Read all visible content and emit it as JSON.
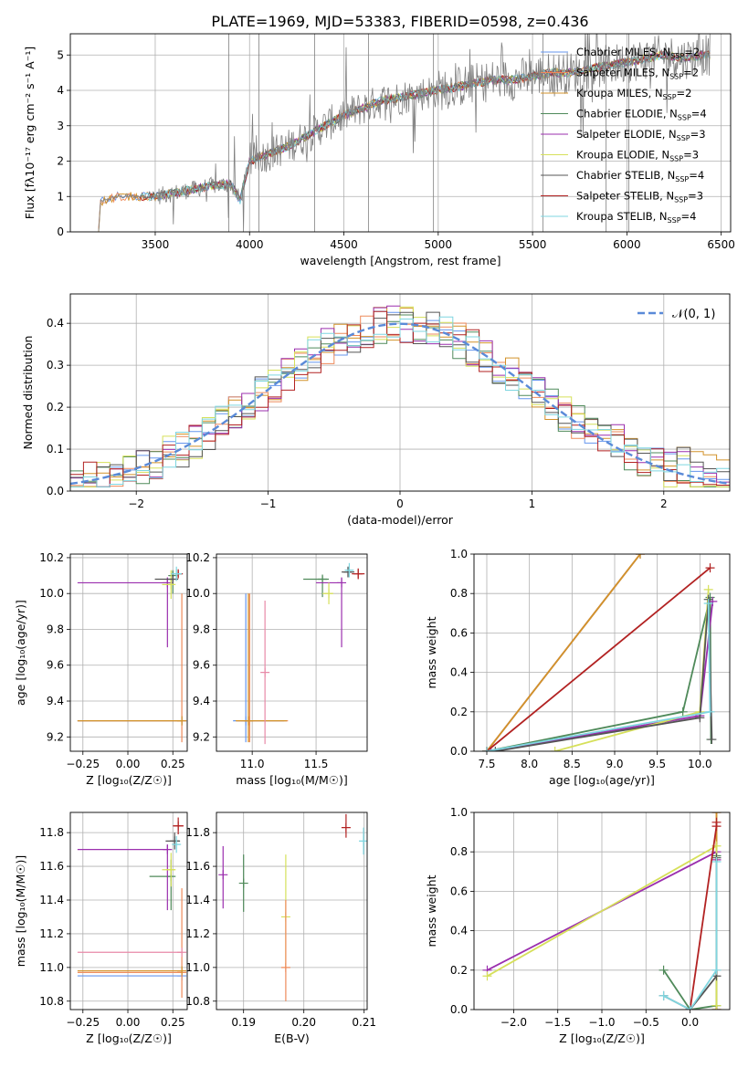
{
  "figure_title": "PLATE=1969, MJD=53383, FIBERID=0598, z=0.436",
  "colors": {
    "grid": "#b0b0b0",
    "spectrum": "#808080",
    "normal_curve": "#5a8ad8",
    "models": {
      "chabrier_miles": "#6495ed",
      "salpeter_miles": "#ee8a5a",
      "kroupa_miles": "#d2922a",
      "chabrier_elodie": "#4f8a5a",
      "salpeter_elodie": "#9b2fae",
      "kroupa_elodie": "#d6e05a",
      "chabrier_stelib": "#555555",
      "salpeter_stelib": "#b22222",
      "kroupa_stelib": "#7fd6e0",
      "extra_pink": "#e88aa8"
    }
  },
  "panels": {
    "spectrum": {
      "xlabel": "wavelength [Angstrom, rest frame]",
      "ylabel": "Flux [f_λ10^-17 erg cm^-2 s^-1 A^-1]",
      "xticks": [
        "3500",
        "4000",
        "4500",
        "5000",
        "5500",
        "6000",
        "6500"
      ],
      "yticks": [
        "0",
        "1",
        "2",
        "3",
        "4",
        "5"
      ],
      "legend": [
        {
          "label": "Chabrier MILES, N_SSP=2",
          "color": "#6495ed"
        },
        {
          "label": "Salpeter MILES, N_SSP=2",
          "color": "#ee8a5a"
        },
        {
          "label": "Kroupa MILES, N_SSP=2",
          "color": "#d2922a"
        },
        {
          "label": "Chabrier ELODIE, N_SSP=4",
          "color": "#4f8a5a"
        },
        {
          "label": "Salpeter ELODIE, N_SSP=3",
          "color": "#9b2fae"
        },
        {
          "label": "Kroupa ELODIE, N_SSP=3",
          "color": "#d6e05a"
        },
        {
          "label": "Chabrier STELIB, N_SSP=4",
          "color": "#555555"
        },
        {
          "label": "Salpeter STELIB, N_SSP=3",
          "color": "#b22222"
        },
        {
          "label": "Kroupa STELIB, N_SSP=4",
          "color": "#7fd6e0"
        }
      ]
    },
    "residuals": {
      "xlabel": "(data-model)/error",
      "ylabel": "Normed distribution",
      "xticks": [
        "−2",
        "−1",
        "0",
        "1",
        "2"
      ],
      "yticks": [
        "0.0",
        "0.1",
        "0.2",
        "0.3",
        "0.4"
      ],
      "legend_label": "𝒩(0, 1)"
    },
    "age_z": {
      "xlabel": "Z [log₁₀(Z/Z☉)]",
      "ylabel": "age  [log₁₀(age/yr)]",
      "xticks": [
        "−0.25",
        "0.00",
        "0.25"
      ],
      "yticks": [
        "9.2",
        "9.4",
        "9.6",
        "9.8",
        "10.0",
        "10.2"
      ]
    },
    "age_mass": {
      "xlabel": "mass [log₁₀(M/M☉)]",
      "xticks": [
        "11.0",
        "11.5"
      ],
      "yticks": [
        "9.2",
        "9.4",
        "9.6",
        "9.8",
        "10.0",
        "10.2"
      ]
    },
    "weight_age": {
      "xlabel": "age  [log₁₀(age/yr)]",
      "ylabel": "mass weight",
      "xticks": [
        "7.5",
        "8.0",
        "8.5",
        "9.0",
        "9.5",
        "10.0"
      ],
      "yticks": [
        "0.0",
        "0.2",
        "0.4",
        "0.6",
        "0.8",
        "1.0"
      ]
    },
    "mass_z": {
      "xlabel": "Z [log₁₀(Z/Z☉)]",
      "ylabel": "mass [log₁₀(M/M☉)]",
      "xticks": [
        "−0.25",
        "0.00",
        "0.25"
      ],
      "yticks": [
        "10.8",
        "11.0",
        "11.2",
        "11.4",
        "11.6",
        "11.8"
      ]
    },
    "mass_ebv": {
      "xlabel": "E(B-V)",
      "xticks": [
        "0.19",
        "0.20",
        "0.21"
      ],
      "yticks": [
        "10.8",
        "11.0",
        "11.2",
        "11.4",
        "11.6",
        "11.8"
      ]
    },
    "weight_z": {
      "xlabel": "Z [log₁₀(Z/Z☉)]",
      "ylabel": "mass weight",
      "xticks": [
        "−2.0",
        "−1.5",
        "−1.0",
        "−0.5",
        "0.0"
      ],
      "yticks": [
        "0.0",
        "0.2",
        "0.4",
        "0.6",
        "0.8",
        "1.0"
      ]
    }
  },
  "chart_data": [
    {
      "type": "line",
      "title": "PLATE=1969, MJD=53383, FIBERID=0598, z=0.436",
      "xlabel": "wavelength [Angstrom, rest frame]",
      "ylabel": "Flux [f_λ10^-17 erg cm^-2 s^-1 A^-1]",
      "xlim": [
        3050,
        6550
      ],
      "ylim": [
        0,
        5.6
      ],
      "grid": true,
      "legend_position": "top-right",
      "observed_trend": {
        "x": [
          3200,
          3210,
          3300,
          3400,
          3500,
          3600,
          3700,
          3800,
          3900,
          3950,
          4000,
          4100,
          4200,
          4300,
          4400,
          4500,
          4600,
          4700,
          4800,
          4900,
          5000,
          5100,
          5200,
          5300,
          5400,
          5500,
          5600,
          5700,
          5800,
          5900,
          6000,
          6100,
          6200,
          6300,
          6400
        ],
        "y": [
          0,
          0.85,
          1.0,
          1.0,
          1.0,
          1.1,
          1.2,
          1.3,
          1.35,
          0.9,
          2.0,
          2.2,
          2.4,
          2.7,
          3.0,
          3.3,
          3.5,
          3.7,
          3.8,
          3.9,
          4.0,
          4.1,
          4.2,
          4.3,
          4.3,
          4.4,
          4.5,
          4.5,
          4.6,
          4.7,
          4.8,
          4.9,
          5.0,
          4.9,
          5.0
        ]
      },
      "series": [
        {
          "name": "Chabrier MILES, N_SSP=2"
        },
        {
          "name": "Salpeter MILES, N_SSP=2"
        },
        {
          "name": "Kroupa MILES, N_SSP=2"
        },
        {
          "name": "Chabrier ELODIE, N_SSP=4"
        },
        {
          "name": "Salpeter ELODIE, N_SSP=3"
        },
        {
          "name": "Kroupa ELODIE, N_SSP=3"
        },
        {
          "name": "Chabrier STELIB, N_SSP=4"
        },
        {
          "name": "Salpeter STELIB, N_SSP=3"
        },
        {
          "name": "Kroupa STELIB, N_SSP=4"
        }
      ]
    },
    {
      "type": "line",
      "xlabel": "(data-model)/error",
      "ylabel": "Normed distribution",
      "xlim": [
        -2.5,
        2.5
      ],
      "ylim": [
        0,
        0.47
      ],
      "grid": true,
      "legend_position": "top-right",
      "bin_width": 0.1,
      "normal_curve": {
        "name": "𝒩(0, 1)",
        "mean": 0,
        "sigma": 1
      },
      "histogram_mean": [
        0.02,
        0.025,
        0.035,
        0.04,
        0.05,
        0.055,
        0.06,
        0.07,
        0.075,
        0.08,
        0.09,
        0.1,
        0.11,
        0.12,
        0.13,
        0.14,
        0.15,
        0.16,
        0.18,
        0.2,
        0.22,
        0.24,
        0.26,
        0.28,
        0.3,
        0.32,
        0.34,
        0.35,
        0.36,
        0.37,
        0.38,
        0.39,
        0.39,
        0.4,
        0.4,
        0.41,
        0.4,
        0.39,
        0.38,
        0.37,
        0.36,
        0.35,
        0.33,
        0.31,
        0.29,
        0.27,
        0.25,
        0.23,
        0.21,
        0.19,
        0.17,
        0.15,
        0.13,
        0.12,
        0.1,
        0.09,
        0.08,
        0.07,
        0.06,
        0.05,
        0.045,
        0.04,
        0.035,
        0.03,
        0.04,
        0.05,
        0.04,
        0.035,
        0.03,
        0.04
      ]
    },
    {
      "type": "scatter",
      "xlabel": "Z [log₁₀(Z/Z☉)]",
      "ylabel": "age  [log₁₀(age/yr)]",
      "xlim": [
        -0.32,
        0.33
      ],
      "ylim": [
        9.12,
        10.22
      ],
      "grid": true,
      "points": [
        {
          "series": "Chabrier MILES",
          "x": 0.3,
          "y": 9.29,
          "xerr": [
            0.58,
            0
          ],
          "yerr": [
            0,
            0
          ]
        },
        {
          "series": "Salpeter MILES",
          "x": 0.3,
          "y": 9.29,
          "xerr": [
            0.58,
            0
          ],
          "yerr": [
            0.12,
            0.71
          ]
        },
        {
          "series": "Kroupa MILES",
          "x": 0.3,
          "y": 9.29,
          "xerr": [
            0.58,
            0
          ],
          "yerr": [
            0,
            0
          ]
        },
        {
          "series": "Chabrier ELODIE",
          "x": 0.25,
          "y": 10.1,
          "xerr": [
            0.02,
            0.01
          ],
          "yerr": [
            0.1,
            0.03
          ]
        },
        {
          "series": "Salpeter ELODIE",
          "x": 0.22,
          "y": 10.06,
          "xerr": [
            0.5,
            0
          ],
          "yerr": [
            0.36,
            0.03
          ]
        },
        {
          "series": "Kroupa ELODIE",
          "x": 0.24,
          "y": 10.05,
          "xerr": [
            0.05,
            0.02
          ],
          "yerr": [
            0.08,
            0.08
          ]
        },
        {
          "series": "Chabrier STELIB",
          "x": 0.25,
          "y": 10.08,
          "xerr": [
            0.1,
            0.03
          ],
          "yerr": [
            0.02,
            0.02
          ]
        },
        {
          "series": "Salpeter STELIB",
          "x": 0.28,
          "y": 10.11,
          "xerr": [
            0.02,
            0.02
          ],
          "yerr": [
            0.02,
            0.02
          ]
        },
        {
          "series": "Kroupa STELIB",
          "x": 0.27,
          "y": 10.11,
          "xerr": [
            0.03,
            0.03
          ],
          "yerr": [
            0.04,
            0.04
          ]
        }
      ]
    },
    {
      "type": "scatter",
      "xlabel": "mass [log₁₀(M/M☉)]",
      "xlim": [
        10.72,
        11.9
      ],
      "ylim": [
        9.12,
        10.22
      ],
      "grid": true,
      "points": [
        {
          "series": "Chabrier MILES",
          "x": 10.95,
          "y": 9.29,
          "xerr": [
            0.1,
            0.3
          ],
          "yerr": [
            0.12,
            0.71
          ]
        },
        {
          "series": "Salpeter MILES",
          "x": 10.98,
          "y": 9.29,
          "xerr": [
            0.1,
            0.3
          ],
          "yerr": [
            0.12,
            0.71
          ]
        },
        {
          "series": "Kroupa MILES",
          "x": 10.97,
          "y": 9.29,
          "xerr": [
            0.1,
            0.3
          ],
          "yerr": [
            0.12,
            0.71
          ]
        },
        {
          "series": "Chabrier ELODIE",
          "x": 11.55,
          "y": 10.08,
          "xerr": [
            0.15,
            0.05
          ],
          "yerr": [
            0.1,
            0.02
          ]
        },
        {
          "series": "Salpeter ELODIE",
          "x": 11.7,
          "y": 10.06,
          "xerr": [
            0.2,
            0.0
          ],
          "yerr": [
            0.36,
            0.03
          ]
        },
        {
          "series": "Kroupa ELODIE",
          "x": 11.6,
          "y": 10.0,
          "xerr": [
            0.05,
            0.03
          ],
          "yerr": [
            0.06,
            0.06
          ]
        },
        {
          "series": "Chabrier STELIB",
          "x": 11.75,
          "y": 10.12,
          "xerr": [
            0.05,
            0.05
          ],
          "yerr": [
            0.03,
            0.03
          ]
        },
        {
          "series": "Salpeter STELIB",
          "x": 11.83,
          "y": 10.11,
          "xerr": [
            0.05,
            0.05
          ],
          "yerr": [
            0.03,
            0.03
          ]
        },
        {
          "series": "Kroupa STELIB",
          "x": 11.76,
          "y": 10.13,
          "xerr": [
            0.03,
            0.03
          ],
          "yerr": [
            0.04,
            0.04
          ]
        },
        {
          "series": "extra",
          "x": 11.1,
          "y": 9.56,
          "xerr": [
            0,
            0
          ],
          "yerr": [
            0.4,
            0.4
          ]
        }
      ]
    },
    {
      "type": "line",
      "xlabel": "age  [log₁₀(age/yr)]",
      "ylabel": "mass weight",
      "xlim": [
        7.35,
        10.35
      ],
      "ylim": [
        0,
        1
      ],
      "grid": true,
      "series": [
        {
          "x": [
            7.5,
            9.3
          ],
          "y": [
            0,
            1.0
          ]
        },
        {
          "x": [
            7.5,
            9.3
          ],
          "y": [
            0,
            1.0
          ]
        },
        {
          "x": [
            7.5,
            9.3
          ],
          "y": [
            0,
            1.0
          ]
        },
        {
          "x": [
            7.5,
            9.8,
            10.12,
            10.13
          ],
          "y": [
            0,
            0.2,
            0.78,
            0.06
          ]
        },
        {
          "x": [
            7.55,
            10.0,
            10.15
          ],
          "y": [
            0,
            0.18,
            0.76
          ]
        },
        {
          "x": [
            8.3,
            10.0,
            10.1
          ],
          "y": [
            0,
            0.2,
            0.82
          ]
        },
        {
          "x": [
            7.6,
            10.0,
            10.1,
            10.14
          ],
          "y": [
            0,
            0.17,
            0.77,
            0.06
          ]
        },
        {
          "x": [
            7.5,
            10.12
          ],
          "y": [
            0,
            0.93
          ]
        },
        {
          "x": [
            7.5,
            10.12,
            10.1
          ],
          "y": [
            0,
            0.2,
            0.75
          ]
        }
      ]
    },
    {
      "type": "scatter",
      "xlabel": "Z [log₁₀(Z/Z☉)]",
      "ylabel": "mass [log₁₀(M/M☉)]",
      "xlim": [
        -0.32,
        0.33
      ],
      "ylim": [
        10.75,
        11.92
      ],
      "grid": true,
      "points": [
        {
          "series": "Chabrier MILES",
          "x": 0.3,
          "y": 10.95,
          "xerr": [
            0.58,
            0
          ],
          "yerr": [
            0,
            0
          ]
        },
        {
          "series": "Salpeter MILES",
          "x": 0.3,
          "y": 10.97,
          "xerr": [
            0.58,
            0
          ],
          "yerr": [
            0.15,
            0.5
          ]
        },
        {
          "series": "Kroupa MILES",
          "x": 0.3,
          "y": 10.98,
          "xerr": [
            0.58,
            0
          ],
          "yerr": [
            0,
            0
          ]
        },
        {
          "series": "extra",
          "x": 0.3,
          "y": 11.09,
          "xerr": [
            0.58,
            0
          ],
          "yerr": [
            0,
            0
          ]
        },
        {
          "series": "Chabrier ELODIE",
          "x": 0.24,
          "y": 11.54,
          "xerr": [
            0.12,
            0.0
          ],
          "yerr": [
            0.2,
            0.1
          ]
        },
        {
          "series": "Salpeter ELODIE",
          "x": 0.22,
          "y": 11.7,
          "xerr": [
            0.5,
            0
          ],
          "yerr": [
            0.36,
            0.03
          ]
        },
        {
          "series": "Kroupa ELODIE",
          "x": 0.24,
          "y": 11.58,
          "xerr": [
            0.05,
            0.02
          ],
          "yerr": [
            0.1,
            0.1
          ]
        },
        {
          "series": "Chabrier STELIB",
          "x": 0.26,
          "y": 11.75,
          "xerr": [
            0.05,
            0.03
          ],
          "yerr": [
            0.05,
            0.05
          ]
        },
        {
          "series": "Salpeter STELIB",
          "x": 0.28,
          "y": 11.84,
          "xerr": [
            0.03,
            0.03
          ],
          "yerr": [
            0.05,
            0.05
          ]
        },
        {
          "series": "Kroupa STELIB",
          "x": 0.27,
          "y": 11.73,
          "xerr": [
            0.02,
            0.02
          ],
          "yerr": [
            0.05,
            0.05
          ]
        }
      ]
    },
    {
      "type": "scatter",
      "xlabel": "E(B-V)",
      "xlim": [
        0.1855,
        0.2105
      ],
      "ylim": [
        10.75,
        11.92
      ],
      "grid": true,
      "points": [
        {
          "series": "Salpeter ELODIE",
          "x": 0.1866,
          "y": 11.55,
          "yerr": [
            0.2,
            0.17
          ]
        },
        {
          "series": "Chabrier ELODIE",
          "x": 0.19,
          "y": 11.5,
          "yerr": [
            0.17,
            0.17
          ]
        },
        {
          "series": "Kroupa ELODIE",
          "x": 0.197,
          "y": 11.3,
          "yerr": [
            0.3,
            0.37
          ]
        },
        {
          "series": "Salpeter MILES",
          "x": 0.197,
          "y": 11.0,
          "yerr": [
            0.2,
            0.4
          ]
        },
        {
          "series": "Salpeter STELIB",
          "x": 0.207,
          "y": 11.83,
          "yerr": [
            0.06,
            0.08
          ]
        },
        {
          "series": "Kroupa STELIB",
          "x": 0.2099,
          "y": 11.75,
          "yerr": [
            0.08,
            0.08
          ]
        }
      ]
    },
    {
      "type": "line",
      "xlabel": "Z [log₁₀(Z/Z☉)]",
      "ylabel": "mass weight",
      "xlim": [
        -2.45,
        0.45
      ],
      "ylim": [
        0,
        1
      ],
      "grid": true,
      "series": [
        {
          "x": [
            0.3,
            0.3
          ],
          "y": [
            0,
            1.0
          ]
        },
        {
          "x": [
            0.3,
            0.3
          ],
          "y": [
            0,
            1.0
          ]
        },
        {
          "x": [
            0.3,
            0.3
          ],
          "y": [
            0,
            1.0
          ]
        },
        {
          "x": [
            -0.3,
            0.0,
            0.3,
            0.3
          ],
          "y": [
            0.2,
            0.0,
            0.02,
            0.78
          ]
        },
        {
          "x": [
            -2.3,
            0.3,
            0.3
          ],
          "y": [
            0.2,
            0.8,
            0.76
          ]
        },
        {
          "x": [
            -2.3,
            0.3,
            0.3
          ],
          "y": [
            0.17,
            0.83,
            0.02
          ]
        },
        {
          "x": [
            -0.3,
            0.0,
            0.3,
            0.3
          ],
          "y": [
            0.07,
            0.0,
            0.17,
            0.77
          ]
        },
        {
          "x": [
            0.0,
            0.3,
            0.3
          ],
          "y": [
            0.0,
            0.93,
            0.95
          ]
        },
        {
          "x": [
            -0.3,
            0.0,
            0.3,
            0.3
          ],
          "y": [
            0.07,
            0.0,
            0.2,
            0.75
          ]
        }
      ]
    }
  ]
}
